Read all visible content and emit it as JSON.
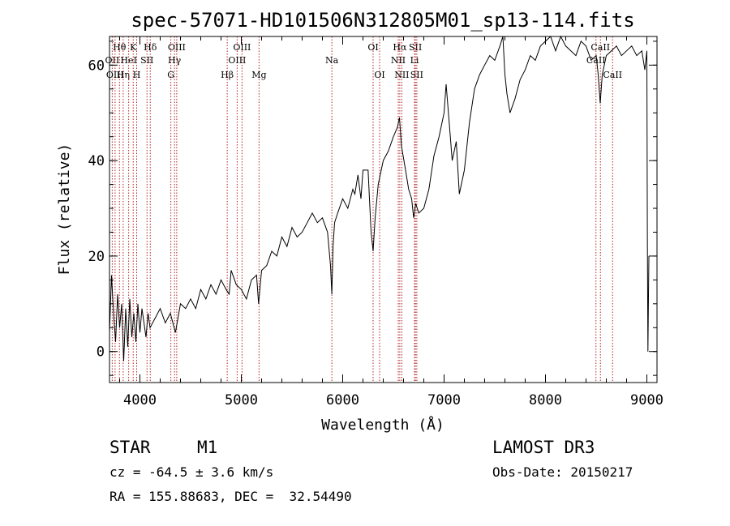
{
  "chart_data": {
    "type": "line",
    "title": "spec-57071-HD101506N312805M01_sp13-114.fits",
    "xlabel": "Wavelength (Å)",
    "ylabel": "Flux (relative)",
    "xlim": [
      3700,
      9100
    ],
    "ylim": [
      -6.5,
      66
    ],
    "xticks": [
      4000,
      5000,
      6000,
      7000,
      8000,
      9000
    ],
    "xtick_labels": [
      "4000",
      "5000",
      "6000",
      "7000",
      "8000",
      "9000"
    ],
    "yticks": [
      0,
      20,
      40,
      60
    ],
    "ytick_labels": [
      "0",
      "20",
      "40",
      "60"
    ],
    "series": [
      {
        "name": "spectrum",
        "x": [
          3700,
          3720,
          3740,
          3760,
          3780,
          3800,
          3820,
          3840,
          3860,
          3880,
          3900,
          3920,
          3940,
          3960,
          3980,
          4000,
          4020,
          4040,
          4060,
          4080,
          4100,
          4150,
          4200,
          4250,
          4300,
          4350,
          4400,
          4450,
          4500,
          4550,
          4600,
          4650,
          4700,
          4750,
          4800,
          4850,
          4880,
          4900,
          4950,
          5000,
          5050,
          5100,
          5150,
          5170,
          5200,
          5250,
          5300,
          5350,
          5400,
          5450,
          5500,
          5550,
          5600,
          5650,
          5700,
          5750,
          5800,
          5850,
          5880,
          5893,
          5905,
          5920,
          5950,
          6000,
          6050,
          6100,
          6120,
          6150,
          6180,
          6200,
          6250,
          6280,
          6300,
          6320,
          6350,
          6400,
          6450,
          6500,
          6540,
          6560,
          6580,
          6620,
          6650,
          6680,
          6700,
          6720,
          6750,
          6800,
          6850,
          6900,
          6950,
          7000,
          7020,
          7050,
          7080,
          7120,
          7150,
          7200,
          7250,
          7300,
          7350,
          7400,
          7450,
          7500,
          7550,
          7580,
          7600,
          7620,
          7650,
          7700,
          7750,
          7800,
          7850,
          7900,
          7950,
          8000,
          8050,
          8100,
          8150,
          8200,
          8250,
          8300,
          8350,
          8400,
          8450,
          8500,
          8520,
          8540,
          8560,
          8600,
          8650,
          8700,
          8750,
          8800,
          8850,
          8900,
          8950,
          8980,
          9000,
          9005,
          9010,
          9020
        ],
        "y": [
          4,
          16,
          8,
          2,
          12,
          5,
          10,
          -2,
          9,
          1,
          11,
          3,
          8,
          2,
          10,
          4,
          9,
          6,
          3,
          8,
          5,
          7,
          9,
          6,
          8,
          4,
          10,
          9,
          11,
          9,
          13,
          11,
          14,
          12,
          15,
          13,
          12,
          17,
          14,
          13,
          11,
          15,
          16,
          10,
          17,
          18,
          21,
          20,
          24,
          22,
          26,
          24,
          25,
          27,
          29,
          27,
          28,
          25,
          18,
          12,
          22,
          27,
          29,
          32,
          30,
          34,
          33,
          37,
          32,
          38,
          38,
          25,
          21,
          28,
          35,
          40,
          42,
          45,
          47,
          49,
          43,
          38,
          34,
          32,
          28,
          31,
          29,
          30,
          34,
          41,
          45,
          50,
          56,
          48,
          40,
          44,
          33,
          38,
          48,
          55,
          58,
          60,
          62,
          61,
          64,
          66,
          58,
          54,
          50,
          53,
          57,
          59,
          62,
          61,
          64,
          65,
          66,
          63,
          66,
          64,
          63,
          62,
          65,
          64,
          61,
          62,
          58,
          52,
          58,
          62,
          63,
          64,
          62,
          63,
          64,
          62,
          63,
          59,
          63,
          25,
          0,
          20
        ]
      }
    ],
    "lines": [
      {
        "label": "Hθ",
        "wave": 3798,
        "row": 1
      },
      {
        "label": "OII",
        "wave": 3727,
        "row": 2
      },
      {
        "label": "OIII",
        "wave": 3755,
        "row": 3
      },
      {
        "label": "Hη",
        "wave": 3835,
        "row": 3
      },
      {
        "label": "HeI",
        "wave": 3889,
        "row": 2
      },
      {
        "label": "K",
        "wave": 3934,
        "row": 1
      },
      {
        "label": "H",
        "wave": 3968,
        "row": 3
      },
      {
        "label": "Hδ",
        "wave": 4102,
        "row": 1
      },
      {
        "label": "SII",
        "wave": 4070,
        "row": 2
      },
      {
        "label": "OIII",
        "wave": 4363,
        "row": 1
      },
      {
        "label": "Hγ",
        "wave": 4341,
        "row": 2
      },
      {
        "label": "G",
        "wave": 4305,
        "row": 3
      },
      {
        "label": "Hβ",
        "wave": 4861,
        "row": 3
      },
      {
        "label": "OIII",
        "wave": 5007,
        "row": 1
      },
      {
        "label": "OIII",
        "wave": 4959,
        "row": 2
      },
      {
        "label": "Mg",
        "wave": 5175,
        "row": 3
      },
      {
        "label": "Na",
        "wave": 5893,
        "row": 2
      },
      {
        "label": "OI",
        "wave": 6300,
        "row": 1
      },
      {
        "label": "OI",
        "wave": 6364,
        "row": 3
      },
      {
        "label": "Hα",
        "wave": 6563,
        "row": 1
      },
      {
        "label": "NII",
        "wave": 6548,
        "row": 2
      },
      {
        "label": "NII",
        "wave": 6583,
        "row": 3
      },
      {
        "label": "SII",
        "wave": 6717,
        "row": 1
      },
      {
        "label": "SII",
        "wave": 6731,
        "row": 3
      },
      {
        "label": "Li",
        "wave": 6708,
        "row": 2
      },
      {
        "label": "CaII",
        "wave": 8542,
        "row": 1
      },
      {
        "label": "CaII",
        "wave": 8498,
        "row": 2
      },
      {
        "label": "CaII",
        "wave": 8662,
        "row": 3
      }
    ]
  },
  "info": {
    "object_type": "STAR",
    "subclass": "M1",
    "survey": "LAMOST DR3",
    "cz": "cz = -64.5 ± 3.6 km/s",
    "obs_date": "Obs-Date: 20150217",
    "coords": "RA = 155.88683, DEC =  32.54490"
  },
  "colors": {
    "line": "#000000",
    "markers": "#b22222"
  }
}
